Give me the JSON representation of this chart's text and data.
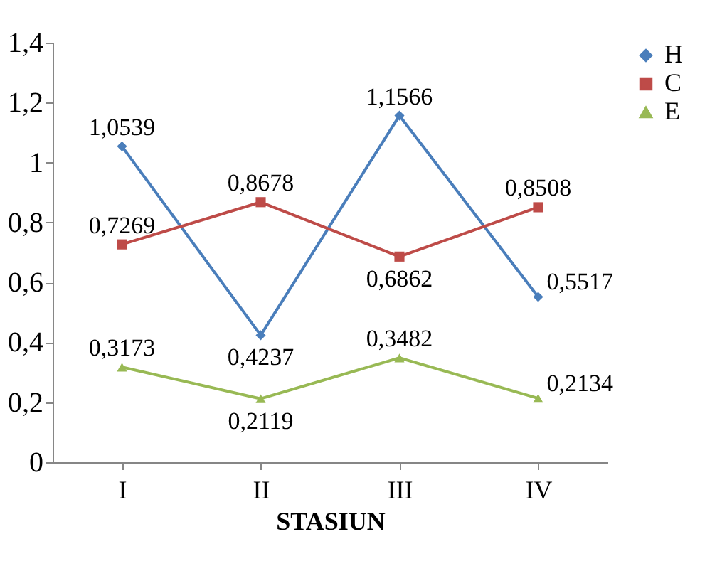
{
  "chart_data": {
    "type": "line",
    "xlabel": "STASIUN",
    "categories": [
      "I",
      "II",
      "III",
      "IV"
    ],
    "series": [
      {
        "name": "H",
        "color": "#4a7ebb",
        "marker": "diamond",
        "values": [
          1.0539,
          0.4237,
          1.1566,
          0.5517
        ],
        "value_labels": [
          "1,0539",
          "0,4237",
          "1,1566",
          "0,5517"
        ]
      },
      {
        "name": "C",
        "color": "#be4b48",
        "marker": "square",
        "values": [
          0.7269,
          0.8678,
          0.6862,
          0.8508
        ],
        "value_labels": [
          "0,7269",
          "0,8678",
          "0,6862",
          "0,8508"
        ]
      },
      {
        "name": "E",
        "color": "#98b954",
        "marker": "triangle",
        "values": [
          0.3173,
          0.2119,
          0.3482,
          0.2134
        ],
        "value_labels": [
          "0,3173",
          "0,2119",
          "0,3482",
          "0,2134"
        ]
      }
    ],
    "ylim": [
      0,
      1.4
    ],
    "yticks": [
      0,
      {
        "value": 0.2,
        "label": "0,2"
      },
      {
        "value": 0.4,
        "label": "0,4"
      },
      {
        "value": 0.6,
        "label": "0,6"
      },
      {
        "value": 0.8,
        "label": "0,8"
      },
      1,
      {
        "value": 1.2,
        "label": "1,2"
      },
      {
        "value": 1.4,
        "label": "1,4"
      }
    ],
    "grid": false,
    "legend": "right",
    "line_style": "solid"
  }
}
